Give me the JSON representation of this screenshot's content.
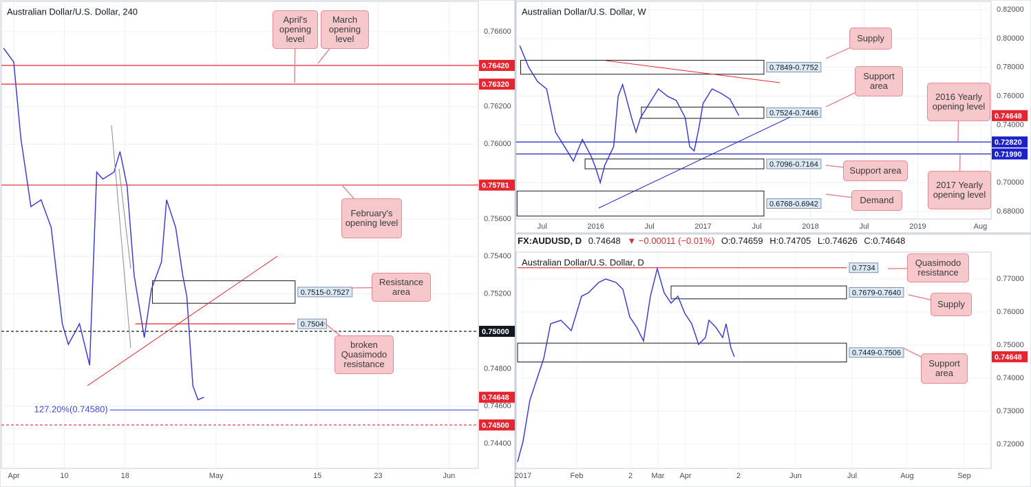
{
  "chart_data": [
    {
      "type": "line",
      "title": "Australian Dollar/U.S. Dollar, 240",
      "color": "#3a3fd0",
      "x": [
        -1.0,
        0,
        0.7,
        1.7,
        2.7,
        3.7,
        4.8,
        5.4,
        6.5,
        7.5,
        8.2,
        8.8,
        9.9,
        10.5,
        11.2,
        11.9,
        12.9,
        13.6,
        14.6,
        15.1,
        16.0,
        16.7,
        17.1,
        17.7,
        18.2,
        18.8
      ],
      "values": [
        0.76512,
        0.76438,
        0.76033,
        0.75666,
        0.75702,
        0.75555,
        0.7504,
        0.7493,
        0.7504,
        0.74819,
        0.7585,
        0.75813,
        0.7585,
        0.7596,
        0.75776,
        0.75298,
        0.74967,
        0.75224,
        0.75371,
        0.75702,
        0.75555,
        0.75298,
        0.75187,
        0.74709,
        0.74635,
        0.74648
      ],
      "xlim": [
        -1.22,
        45.9
      ],
      "ylim": [
        0.74268,
        0.76762
      ],
      "grid": true,
      "xticks": [
        {
          "value": 0,
          "label": "Apr"
        },
        {
          "value": 5,
          "label": "10"
        },
        {
          "value": 11,
          "label": "18"
        },
        {
          "value": 20,
          "label": "May"
        },
        {
          "value": 30,
          "label": "15"
        },
        {
          "value": 36,
          "label": "23"
        },
        {
          "value": 43,
          "label": "Jun"
        }
      ],
      "yticks": [
        {
          "value": 0.766,
          "label": "0.76600"
        },
        {
          "value": 0.762,
          "label": "0.76200"
        },
        {
          "value": 0.76,
          "label": "0.76000"
        },
        {
          "value": 0.756,
          "label": "0.75600"
        },
        {
          "value": 0.754,
          "label": "0.75400"
        },
        {
          "value": 0.752,
          "label": "0.75200"
        },
        {
          "value": 0.748,
          "label": "0.74800"
        },
        {
          "value": 0.746,
          "label": "0.74600"
        },
        {
          "value": 0.744,
          "label": "0.74400"
        }
      ],
      "zones": [
        {
          "range": [
            0.7515,
            0.7527
          ],
          "label": "0.7515-0.7527",
          "x": [
            13.7,
            27.8
          ]
        }
      ],
      "levels": [
        {
          "value": 0.7642,
          "label": "0.76420",
          "color": "#e5252f",
          "line": "solid",
          "tag": "axis"
        },
        {
          "value": 0.7632,
          "label": "0.76320",
          "color": "#e5252f",
          "line": "solid",
          "tag": "axis"
        },
        {
          "value": 0.75781,
          "label": "0.75781",
          "color": "#e5252f",
          "line": "solid",
          "tag": "axis"
        },
        {
          "value": 0.75,
          "label": "0.75000",
          "color": "#131722",
          "line": "dashed",
          "tag": "axis"
        },
        {
          "value": 0.74648,
          "label": "0.74648",
          "color": "#e5252f",
          "line": "none",
          "tag": "axis"
        },
        {
          "value": 0.745,
          "label": "0.74500",
          "color": "#e5252f",
          "line": "dashed",
          "tag": "axis"
        },
        {
          "value": 0.7458,
          "label": "127.20%(0.74580)",
          "color": "#3d4fdb",
          "line": "solid",
          "tag": "left",
          "x": [
            9.5,
            45.9
          ]
        },
        {
          "value": 0.7504,
          "label": "0.7504",
          "color": "#e5252f",
          "line": "solid",
          "tag": "end",
          "x": [
            12.0,
            27.8
          ]
        }
      ],
      "annotations": [
        "April's opening level",
        "March opening level",
        "February's opening level",
        "Resistance area",
        "broken Quasimodo resistance"
      ]
    },
    {
      "type": "line",
      "title": "Australian Dollar/U.S. Dollar, W",
      "color": "#3a3fd0",
      "x": [
        -8.5,
        -7.5,
        -6.5,
        -5.5,
        -4.5,
        -3.5,
        -2.5,
        -1.5,
        -0.5,
        0,
        0.5,
        1,
        2,
        2.5,
        3,
        4,
        4.5,
        5,
        6,
        7,
        8,
        9,
        10,
        10.5,
        11,
        11.5,
        12,
        13,
        14,
        15,
        16
      ],
      "values": [
        0.795,
        0.78,
        0.77,
        0.765,
        0.735,
        0.725,
        0.715,
        0.73,
        0.718,
        0.71,
        0.7,
        0.712,
        0.725,
        0.76,
        0.768,
        0.745,
        0.735,
        0.745,
        0.755,
        0.765,
        0.76,
        0.757,
        0.745,
        0.725,
        0.722,
        0.737,
        0.755,
        0.765,
        0.762,
        0.758,
        0.7465
      ],
      "xlim": [
        -8.9,
        44.2
      ],
      "ylim": [
        0.67474,
        0.82573
      ],
      "grid": true,
      "xticks": [
        {
          "value": -6,
          "label": "Jul"
        },
        {
          "value": 0,
          "label": "2016"
        },
        {
          "value": 6,
          "label": "Jul"
        },
        {
          "value": 12,
          "label": "2017"
        },
        {
          "value": 18,
          "label": "Jul"
        },
        {
          "value": 24,
          "label": "2018"
        },
        {
          "value": 30,
          "label": "Jul"
        },
        {
          "value": 36,
          "label": "2019"
        },
        {
          "value": 43,
          "label": "Aug"
        }
      ],
      "yticks": [
        {
          "value": 0.82,
          "label": "0.82000"
        },
        {
          "value": 0.8,
          "label": "0.80000"
        },
        {
          "value": 0.78,
          "label": "0.78000"
        },
        {
          "value": 0.76,
          "label": "0.76000"
        },
        {
          "value": 0.74,
          "label": "0.74000"
        },
        {
          "value": 0.7,
          "label": "0.70000"
        },
        {
          "value": 0.68,
          "label": "0.68000"
        }
      ],
      "zones": [
        {
          "range": [
            0.7752,
            0.7849
          ],
          "label": "0.7849-0.7752",
          "x": [
            -8.4,
            18.8
          ]
        },
        {
          "range": [
            0.7446,
            0.7524
          ],
          "label": "0.7524-0.7446",
          "x": [
            5.1,
            18.8
          ]
        },
        {
          "range": [
            0.7096,
            0.7164
          ],
          "label": "0.7096-0.7164",
          "x": [
            -1.2,
            18.8
          ]
        },
        {
          "range": [
            0.6768,
            0.6942
          ],
          "label": "0.6768-0.6942",
          "x": [
            -8.8,
            18.8
          ]
        }
      ],
      "levels": [
        {
          "value": 0.74648,
          "label": "0.74648",
          "color": "#e5252f",
          "line": "none",
          "tag": "axis"
        },
        {
          "value": 0.7282,
          "label": "0.72820",
          "color": "#1c22c8",
          "line": "solid",
          "tag": "axis"
        },
        {
          "value": 0.7199,
          "label": "0.71990",
          "color": "#1c22c8",
          "line": "solid",
          "tag": "axis"
        }
      ],
      "annotations": [
        "Supply",
        "Support area",
        "2016 Yearly opening level",
        "Support area",
        "2017 Yearly opening level",
        "Demand"
      ]
    },
    {
      "type": "line",
      "title": "Australian Dollar/U.S. Dollar, D",
      "color": "#3a3fd0",
      "x": [
        -0.8,
        0,
        1,
        2,
        3,
        4,
        5.5,
        7,
        8.5,
        9.5,
        11,
        12,
        13.5,
        14.5,
        15.5,
        16.5,
        17.5,
        18.5,
        19.5,
        20.5,
        21.5,
        22.5,
        23.5,
        24.5,
        25.5,
        26.5,
        27,
        28,
        29,
        29.5,
        30.2,
        30.7
      ],
      "values": [
        0.71469,
        0.72094,
        0.73344,
        0.73969,
        0.74594,
        0.75646,
        0.7575,
        0.75438,
        0.76479,
        0.76583,
        0.76896,
        0.77,
        0.76896,
        0.76688,
        0.75854,
        0.75542,
        0.75125,
        0.76479,
        0.77313,
        0.76583,
        0.76271,
        0.76479,
        0.75958,
        0.75646,
        0.75021,
        0.75229,
        0.7575,
        0.75542,
        0.75229,
        0.75646,
        0.74917,
        0.74648
      ],
      "xlim": [
        -1,
        68
      ],
      "ylim": [
        0.71271,
        0.77813
      ],
      "grid": true,
      "xticks": [
        {
          "value": 0,
          "label": "2017"
        },
        {
          "value": 7.8,
          "label": "Feb"
        },
        {
          "value": 15.6,
          "label": "2"
        },
        {
          "value": 19.6,
          "label": "Mar"
        },
        {
          "value": 23.6,
          "label": "Apr"
        },
        {
          "value": 31.3,
          "label": "2"
        },
        {
          "value": 39.6,
          "label": "Jun"
        },
        {
          "value": 47.8,
          "label": "Jul"
        },
        {
          "value": 55.8,
          "label": "Aug"
        },
        {
          "value": 64.1,
          "label": "Sep"
        }
      ],
      "yticks": [
        {
          "value": 0.77,
          "label": "0.77000"
        },
        {
          "value": 0.76,
          "label": "0.76000"
        },
        {
          "value": 0.75,
          "label": "0.75000"
        },
        {
          "value": 0.74,
          "label": "0.74000"
        },
        {
          "value": 0.73,
          "label": "0.73000"
        },
        {
          "value": 0.72,
          "label": "0.72000"
        }
      ],
      "zones": [
        {
          "range": [
            0.764,
            0.7679
          ],
          "label": "0.7679-0.7640",
          "x": [
            21.5,
            47
          ]
        },
        {
          "range": [
            0.7449,
            0.7506
          ],
          "label": "0.7449-0.7506",
          "x": [
            -0.8,
            47
          ]
        }
      ],
      "levels": [
        {
          "value": 0.7734,
          "label": "0.7734",
          "color": "#e5252f",
          "line": "solid",
          "tag": "end",
          "x": [
            -0.8,
            47
          ]
        },
        {
          "value": 0.74648,
          "label": "0.74648",
          "color": "#e5252f",
          "line": "none",
          "tag": "axis"
        }
      ],
      "annotations": [
        "Quasimodo resistance",
        "Supply",
        "Support area"
      ]
    }
  ],
  "quote_bar": {
    "symbol": "FX:AUDUSD, D",
    "last": "0.74648",
    "change": "▼ −0.00011 (−0.01%)",
    "open": "O:0.74659",
    "high": "H:0.74705",
    "low": "L:0.74626",
    "close": "C:0.74648"
  }
}
